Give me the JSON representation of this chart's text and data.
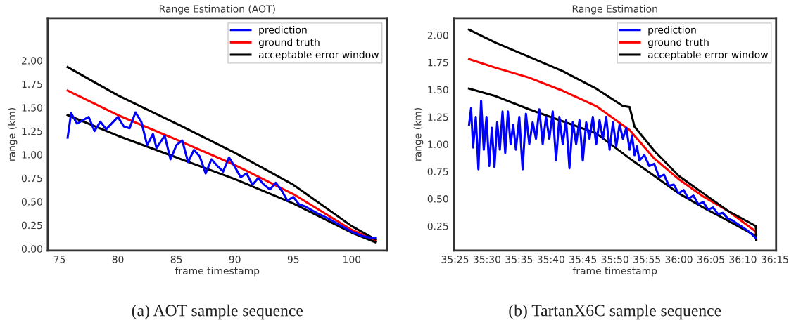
{
  "chart_data": [
    {
      "type": "line",
      "title": "Range Estimation (AOT)",
      "xlabel": "frame timestamp",
      "ylabel": "range (km)",
      "legend": "top right",
      "xlim": [
        74,
        103
      ],
      "ylim": [
        -0.02,
        2.45
      ],
      "xticks": [
        75,
        80,
        85,
        90,
        95,
        100
      ],
      "yticks": [
        {
          "value": 0,
          "label": "0.00"
        },
        {
          "value": 0.25,
          "label": "0.25"
        },
        {
          "value": 0.5,
          "label": "0.50"
        },
        {
          "value": 0.75,
          "label": "0.75"
        },
        {
          "value": 1,
          "label": "1.00"
        },
        {
          "value": 1.25,
          "label": "1.25"
        },
        {
          "value": 1.5,
          "label": "1.50"
        },
        {
          "value": 1.75,
          "label": "1.75"
        },
        {
          "value": 2,
          "label": "2.00"
        }
      ],
      "series": [
        {
          "name": "prediction",
          "color": "#0000ff",
          "x": [
            75.7,
            76,
            76.5,
            77.5,
            78,
            78.5,
            79,
            80,
            80.5,
            81,
            81.5,
            82,
            82.5,
            83,
            83.3,
            84,
            84.5,
            85,
            85.5,
            86,
            86.5,
            87,
            87.5,
            88,
            88.5,
            89,
            89.5,
            90,
            90.5,
            91,
            91.5,
            92,
            92.5,
            93,
            93.5,
            94,
            94.5,
            95,
            95.5,
            96,
            97,
            98,
            99,
            100,
            101,
            102
          ],
          "values": [
            1.18,
            1.44,
            1.33,
            1.4,
            1.25,
            1.35,
            1.27,
            1.4,
            1.3,
            1.28,
            1.45,
            1.35,
            1.1,
            1.22,
            1.07,
            1.2,
            0.95,
            1.1,
            1.15,
            0.92,
            1.05,
            0.98,
            0.8,
            0.95,
            0.88,
            0.82,
            0.97,
            0.87,
            0.76,
            0.8,
            0.68,
            0.75,
            0.68,
            0.63,
            0.7,
            0.62,
            0.51,
            0.55,
            0.47,
            0.45,
            0.38,
            0.32,
            0.25,
            0.18,
            0.13,
            0.11
          ]
        },
        {
          "name": "ground truth",
          "color": "#ff0000",
          "x": [
            75.7,
            80,
            85,
            90,
            95,
            100,
            102
          ],
          "values": [
            1.68,
            1.42,
            1.16,
            0.89,
            0.58,
            0.2,
            0.09
          ]
        },
        {
          "name": "acceptable error window",
          "color": "#000000",
          "x": [
            75.7,
            80,
            85,
            90,
            95,
            100,
            102
          ],
          "values": [
            1.93,
            1.63,
            1.33,
            1.02,
            0.68,
            0.24,
            0.1
          ]
        },
        {
          "color": "#000000",
          "x": [
            75.7,
            80,
            85,
            90,
            95,
            100,
            102
          ],
          "values": [
            1.42,
            1.2,
            0.97,
            0.74,
            0.48,
            0.17,
            0.07
          ]
        }
      ],
      "annotations": [
        "(a) AOT sample sequence"
      ]
    },
    {
      "type": "line",
      "title": "Range Estimation",
      "xlabel": "frame timestamp",
      "ylabel": "range (km)",
      "legend": "top right",
      "xlim": [
        2124.8,
        2175.2
      ],
      "ylim": [
        0.025,
        2.155
      ],
      "xticks": [
        {
          "value": 2125,
          "label": "35:25"
        },
        {
          "value": 2130,
          "label": "35:30"
        },
        {
          "value": 2135,
          "label": "35:35"
        },
        {
          "value": 2140,
          "label": "35:40"
        },
        {
          "value": 2145,
          "label": "35:45"
        },
        {
          "value": 2150,
          "label": "35:50"
        },
        {
          "value": 2155,
          "label": "35:55"
        },
        {
          "value": 2160,
          "label": "36:00"
        },
        {
          "value": 2165,
          "label": "36:05"
        },
        {
          "value": 2170,
          "label": "36:10"
        },
        {
          "value": 2175,
          "label": "36:15"
        }
      ],
      "yticks": [
        {
          "value": 0.25,
          "label": "0.25"
        },
        {
          "value": 0.5,
          "label": "0.50"
        },
        {
          "value": 0.75,
          "label": "0.75"
        },
        {
          "value": 1,
          "label": "1.00"
        },
        {
          "value": 1.25,
          "label": "1.25"
        },
        {
          "value": 1.5,
          "label": "1.50"
        },
        {
          "value": 1.75,
          "label": "1.75"
        },
        {
          "value": 2,
          "label": "2.00"
        }
      ],
      "series": [
        {
          "name": "prediction",
          "color": "#0000ff",
          "x": [
            2127.2,
            2127.51,
            2127.83,
            2128.25,
            2128.66,
            2129.08,
            2129.5,
            2129.92,
            2130.34,
            2130.76,
            2131.17,
            2131.59,
            2132.01,
            2132.43,
            2132.85,
            2133.27,
            2133.69,
            2134.1,
            2134.52,
            2135.05,
            2135.57,
            2136.09,
            2136.61,
            2137.14,
            2137.66,
            2138.18,
            2138.71,
            2139.23,
            2139.75,
            2140.28,
            2140.8,
            2141.32,
            2141.84,
            2142.37,
            2142.89,
            2143.41,
            2143.94,
            2144.46,
            2144.98,
            2145.51,
            2146.03,
            2146.55,
            2147.07,
            2147.6,
            2148.12,
            2148.64,
            2149.17,
            2149.69,
            2150.21,
            2150.73,
            2151.25,
            2151.78,
            2152.3,
            2152.68,
            2153.07,
            2153.45,
            2153.83,
            2154.6,
            2155.37,
            2156.14,
            2156.9,
            2157.67,
            2158.44,
            2159.2,
            2159.97,
            2160.74,
            2161.5,
            2162.27,
            2163.04,
            2163.81,
            2164.57,
            2165.34,
            2166.11,
            2166.87,
            2167.64,
            2168.41,
            2169.17,
            2169.94,
            2170.71,
            2171.48,
            2172.02
          ],
          "values": [
            1.18,
            1.33,
            0.97,
            1.25,
            0.77,
            1.4,
            0.95,
            1.25,
            0.8,
            1.15,
            0.79,
            1.2,
            0.95,
            1.3,
            0.92,
            1.3,
            1.0,
            1.18,
            0.95,
            1.25,
            0.77,
            1.28,
            1.0,
            1.2,
            1.05,
            1.32,
            1.0,
            1.25,
            1.05,
            1.3,
            0.85,
            1.25,
            1.0,
            1.22,
            0.78,
            1.2,
            1.0,
            1.22,
            0.85,
            1.2,
            1.05,
            1.25,
            1.0,
            1.22,
            1.05,
            1.25,
            0.95,
            1.2,
            0.98,
            1.18,
            1.05,
            1.15,
            0.95,
            1.08,
            0.9,
            0.98,
            0.85,
            0.9,
            0.8,
            0.82,
            0.7,
            0.72,
            0.62,
            0.63,
            0.55,
            0.58,
            0.5,
            0.53,
            0.45,
            0.47,
            0.4,
            0.42,
            0.36,
            0.37,
            0.32,
            0.3,
            0.27,
            0.24,
            0.21,
            0.17,
            0.14
          ]
        },
        {
          "name": "ground truth",
          "color": "#ff0000",
          "x": [
            2127.2,
            2131.38,
            2136.61,
            2141.84,
            2147.07,
            2152.3,
            2156.14,
            2159.97,
            2163.81,
            2167.64,
            2172.02,
            2172.1
          ],
          "values": [
            1.78,
            1.7,
            1.61,
            1.49,
            1.35,
            1.13,
            0.87,
            0.68,
            0.52,
            0.39,
            0.2,
            0.13
          ]
        },
        {
          "name": "acceptable error window",
          "color": "#000000",
          "x": [
            2127.2,
            2131.38,
            2136.61,
            2141.84,
            2147.07,
            2151.25,
            2152.3,
            2153.07,
            2156.14,
            2159.97,
            2163.81,
            2167.64,
            2172.02,
            2172.1
          ],
          "values": [
            2.05,
            1.93,
            1.8,
            1.67,
            1.51,
            1.35,
            1.34,
            1.16,
            0.94,
            0.71,
            0.55,
            0.39,
            0.25,
            0.17
          ]
        },
        {
          "color": "#000000",
          "x": [
            2127.2,
            2131.38,
            2136.61,
            2141.84,
            2147.07,
            2152.3,
            2156.14,
            2159.97,
            2163.81,
            2167.64,
            2172.02,
            2172.1
          ],
          "values": [
            1.51,
            1.44,
            1.32,
            1.21,
            1.1,
            0.87,
            0.71,
            0.55,
            0.42,
            0.3,
            0.16,
            0.12
          ]
        }
      ],
      "annotations": [
        "(b) TartanX6C sample sequence"
      ]
    }
  ]
}
